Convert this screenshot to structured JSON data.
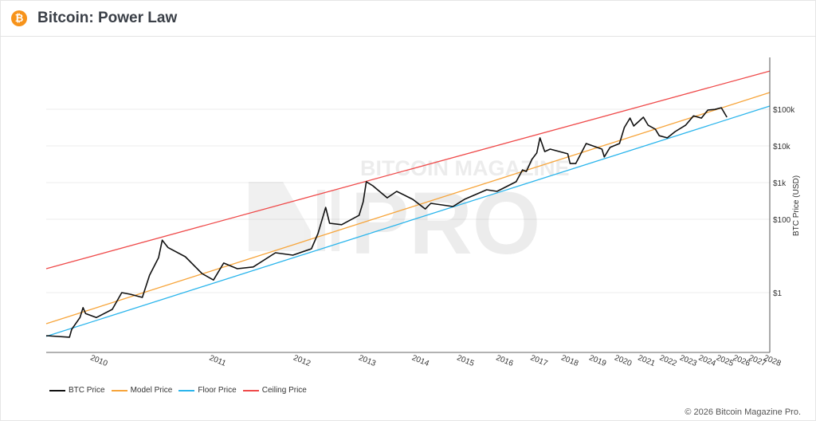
{
  "header": {
    "title": "Bitcoin: Power Law",
    "icon": "bitcoin-icon"
  },
  "footer": {
    "copyright": "© 2026 Bitcoin Magazine Pro."
  },
  "watermark": {
    "line1": "BITCOIN MAGAZINE",
    "line2": "PRO"
  },
  "colors": {
    "btc": "#111111",
    "model": "#f7a53b",
    "floor": "#2bb5ec",
    "ceiling": "#ef4a4a",
    "brand": "#f7931a"
  },
  "legend": [
    {
      "label": "BTC Price",
      "color": "#111111"
    },
    {
      "label": "Model Price",
      "color": "#f7a53b"
    },
    {
      "label": "Floor Price",
      "color": "#2bb5ec"
    },
    {
      "label": "Ceiling Price",
      "color": "#ef4a4a"
    }
  ],
  "chart_data": {
    "type": "line",
    "title": "Bitcoin: Power Law",
    "xlabel": "",
    "ylabel": "BTC Price (USD)",
    "x_scale": "log (days since genesis)",
    "y_scale": "log",
    "xlim": [
      "2010-08-29",
      "2028-09-01"
    ],
    "ylim": [
      0.023,
      2600000
    ],
    "grid": true,
    "legend_position": "bottom-left",
    "x_ticks": [
      "2010",
      "2011",
      "2012",
      "2013",
      "2014",
      "2015",
      "2016",
      "2017",
      "2018",
      "2019",
      "2020",
      "2021",
      "2022",
      "2023",
      "2024",
      "2025",
      "2026",
      "2027",
      "2028"
    ],
    "y_ticks": [
      {
        "value": 100000,
        "label": "$100k"
      },
      {
        "value": 10000,
        "label": "$10k"
      },
      {
        "value": 1000,
        "label": "$1k"
      },
      {
        "value": 100,
        "label": "$100"
      },
      {
        "value": 1,
        "label": "$1"
      }
    ],
    "series": [
      {
        "name": "BTC Price",
        "color": "#111111",
        "points": [
          [
            "2010-08-29",
            0.067
          ],
          [
            "2010-10-18",
            0.061
          ],
          [
            "2010-10-23",
            0.1
          ],
          [
            "2010-11-11",
            0.21
          ],
          [
            "2010-11-18",
            0.39
          ],
          [
            "2010-11-24",
            0.27
          ],
          [
            "2010-12-20",
            0.21
          ],
          [
            "2011-01-29",
            0.35
          ],
          [
            "2011-02-23",
            1.0
          ],
          [
            "2011-03-19",
            0.9
          ],
          [
            "2011-04-21",
            0.74
          ],
          [
            "2011-05-12",
            3.0
          ],
          [
            "2011-06-08",
            9.0
          ],
          [
            "2011-06-19",
            27
          ],
          [
            "2011-07-07",
            17
          ],
          [
            "2011-09-01",
            9.5
          ],
          [
            "2011-10-28",
            3.3
          ],
          [
            "2011-12-08",
            2.2
          ],
          [
            "2012-01-15",
            6.4
          ],
          [
            "2012-03-08",
            4.5
          ],
          [
            "2012-05-12",
            5.0
          ],
          [
            "2012-08-17",
            12.2
          ],
          [
            "2012-11-06",
            10.5
          ],
          [
            "2013-02-06",
            15.7
          ],
          [
            "2013-03-12",
            40.6
          ],
          [
            "2013-04-22",
            211
          ],
          [
            "2013-05-13",
            78
          ],
          [
            "2013-07-19",
            71
          ],
          [
            "2013-10-29",
            128
          ],
          [
            "2013-11-23",
            301
          ],
          [
            "2013-12-12",
            1054
          ],
          [
            "2014-01-22",
            819
          ],
          [
            "2014-04-25",
            385
          ],
          [
            "2014-06-28",
            577
          ],
          [
            "2014-10-19",
            350
          ],
          [
            "2015-01-20",
            191
          ],
          [
            "2015-03-03",
            272
          ],
          [
            "2015-08-28",
            223
          ],
          [
            "2015-12-02",
            350
          ],
          [
            "2016-06-19",
            638
          ],
          [
            "2016-09-25",
            577
          ],
          [
            "2017-04-04",
            1054
          ],
          [
            "2017-06-10",
            2220
          ],
          [
            "2017-07-20",
            2010
          ],
          [
            "2017-09-18",
            4260
          ],
          [
            "2017-11-11",
            6430
          ],
          [
            "2017-12-16",
            16600
          ],
          [
            "2018-02-08",
            7000
          ],
          [
            "2018-04-12",
            8200
          ],
          [
            "2018-11-08",
            6100
          ],
          [
            "2018-12-07",
            3300
          ],
          [
            "2019-02-15",
            3300
          ],
          [
            "2019-06-30",
            11600
          ],
          [
            "2020-01-29",
            8200
          ],
          [
            "2020-03-01",
            5000
          ],
          [
            "2020-05-21",
            9100
          ],
          [
            "2020-10-05",
            11600
          ],
          [
            "2020-12-16",
            31800
          ],
          [
            "2021-03-11",
            57500
          ],
          [
            "2021-05-08",
            35000
          ],
          [
            "2021-10-06",
            60500
          ],
          [
            "2021-12-21",
            36600
          ],
          [
            "2022-04-18",
            28500
          ],
          [
            "2022-06-22",
            19000
          ],
          [
            "2022-11-07",
            16600
          ],
          [
            "2023-03-26",
            24600
          ],
          [
            "2023-09-29",
            36600
          ],
          [
            "2024-02-25",
            66000
          ],
          [
            "2024-07-26",
            57500
          ],
          [
            "2024-11-30",
            95000
          ],
          [
            "2025-04-21",
            99000
          ],
          [
            "2025-08-31",
            110000
          ],
          [
            "2025-12-26",
            60500
          ]
        ]
      },
      {
        "name": "Model Price",
        "color": "#f7a53b",
        "points": [
          [
            "2010-08-29",
            0.142
          ],
          [
            "2028-09-01",
            286000
          ]
        ]
      },
      {
        "name": "Floor Price",
        "color": "#2bb5ec",
        "points": [
          [
            "2010-08-29",
            0.064
          ],
          [
            "2028-09-01",
            122000
          ]
        ]
      },
      {
        "name": "Ceiling Price",
        "color": "#ef4a4a",
        "points": [
          [
            "2010-08-29",
            4.5
          ],
          [
            "2028-09-01",
            1100000
          ]
        ]
      }
    ]
  }
}
